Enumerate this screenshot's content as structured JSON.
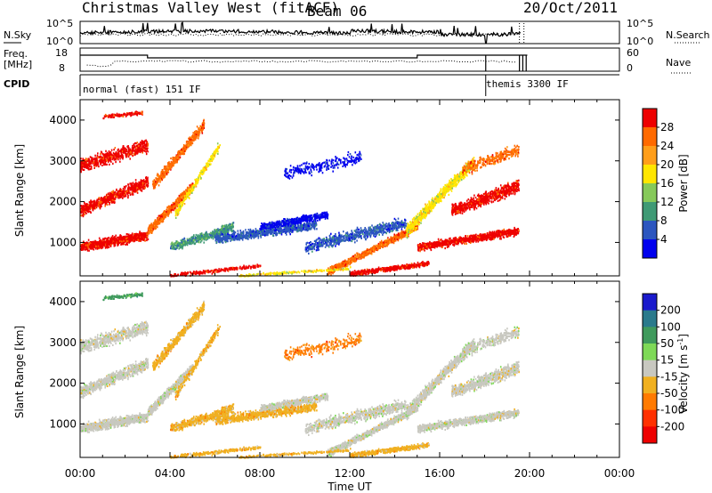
{
  "header": {
    "station": "Christmas Valley West (fitACF)",
    "beam": "Beam 06",
    "date": "20/Oct/2011"
  },
  "summary": {
    "nsky_label": "N.Sky",
    "nsearch_label": "N.Search",
    "nsky_ticks": [
      "10^5",
      "10^0"
    ],
    "nsearch_ticks": [
      "10^5",
      "10^0"
    ],
    "freq_label_1": "Freq.",
    "freq_label_2": "[MHz]",
    "freq_ticks": [
      "18",
      "8"
    ],
    "nave_label": "Nave",
    "nave_ticks": [
      "60",
      "0"
    ],
    "cpid_label": "CPID",
    "cpid_segments": [
      {
        "label": "normal (fast) 151 IF",
        "start_hour": 0.0
      },
      {
        "label": "themis 3300 IF",
        "start_hour": 18.05
      }
    ]
  },
  "chart_data": [
    {
      "type": "heatmap",
      "name": "power",
      "ylabel": "Slant Range [km]",
      "xlabel": "",
      "xlim_hours": [
        0,
        24
      ],
      "ylim_km": [
        180,
        4500
      ],
      "yticks": [
        "1000",
        "2000",
        "3000",
        "4000"
      ],
      "colorbar_label": "Power [dB]",
      "colorbar_ticks": [
        "28",
        "24",
        "20",
        "16",
        "12",
        "8",
        "4"
      ],
      "colorbar_colors": [
        "#ee0000",
        "#ff6a00",
        "#ff9e1a",
        "#ffe600",
        "#86c95a",
        "#3f9a75",
        "#2c56bf",
        "#0000ee"
      ]
    },
    {
      "type": "heatmap",
      "name": "velocity",
      "ylabel": "Slant Range [km]",
      "xlabel": "Time UT",
      "xlim_hours": [
        0,
        24
      ],
      "ylim_km": [
        180,
        4500
      ],
      "yticks": [
        "1000",
        "2000",
        "3000",
        "4000"
      ],
      "xticks": [
        "00:00",
        "04:00",
        "08:00",
        "12:00",
        "16:00",
        "20:00",
        "00:00"
      ],
      "colorbar_label": "Velocity [m s",
      "colorbar_label_sup": "-1",
      "colorbar_label_end": "]",
      "colorbar_ticks": [
        "200",
        "100",
        "50",
        "15",
        "-15",
        "-50",
        "-100",
        "-200"
      ],
      "colorbar_colors": [
        "#1a1acc",
        "#2a7a8c",
        "#3f9a5c",
        "#7ed957",
        "#c8c8c0",
        "#f0b020",
        "#ff7a00",
        "#ff3000",
        "#ee0000"
      ]
    }
  ]
}
